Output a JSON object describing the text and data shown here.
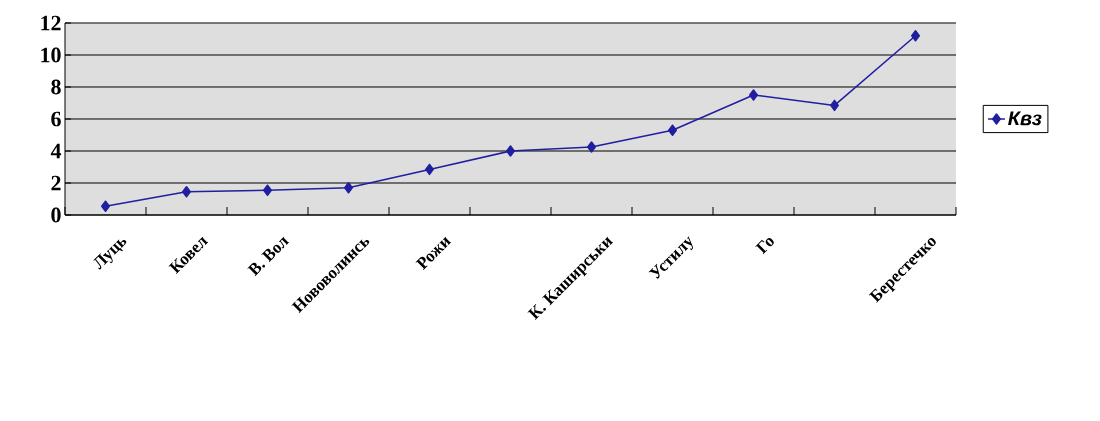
{
  "chart_data": {
    "type": "line",
    "categories": [
      "Луць",
      "Ковел",
      "В. Вол",
      "Нововолинсь",
      "Рожи",
      null,
      "К. Каширськи",
      "Устилу",
      "Го",
      null,
      "Берестечко"
    ],
    "series": [
      {
        "name": "Квз",
        "color": "#1f1f9f",
        "values": [
          0.55,
          1.45,
          1.55,
          1.7,
          2.85,
          4.0,
          4.25,
          5.3,
          7.5,
          6.85,
          11.2
        ]
      }
    ],
    "ylim": [
      0,
      12
    ],
    "yticks": [
      0,
      2,
      4,
      6,
      8,
      10,
      12
    ],
    "grid": "y",
    "legend": "right",
    "marker": "diamond"
  }
}
